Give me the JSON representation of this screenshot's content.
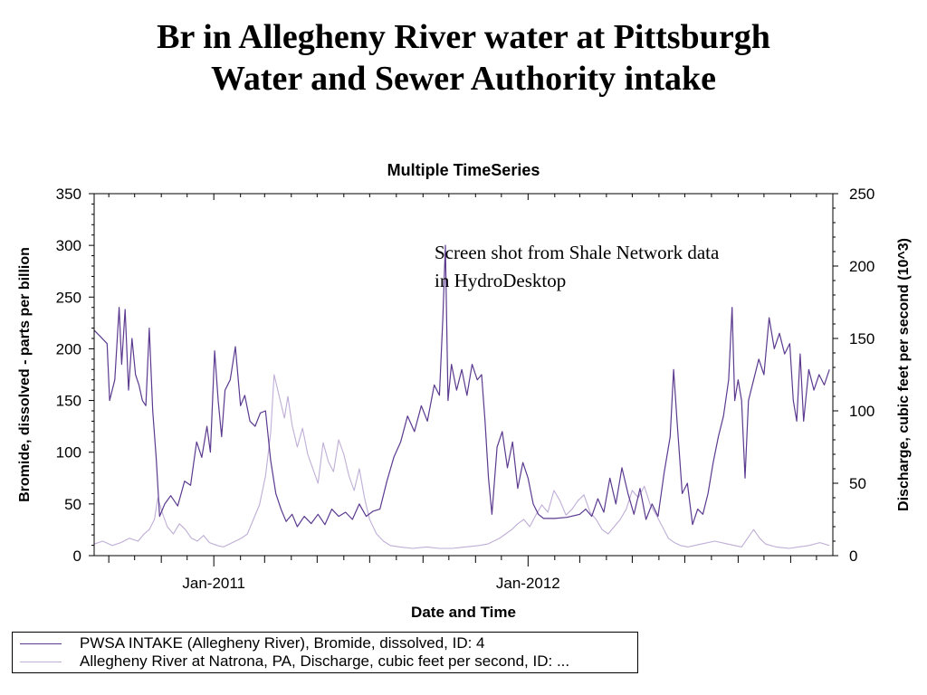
{
  "slide": {
    "title_line1": "Br in Allegheny River water at Pittsburgh",
    "title_line2": "Water and Sewer Authority intake"
  },
  "annotation": {
    "line1": "Screen shot from Shale Network data",
    "line2": "in HydroDesktop"
  },
  "chart_data": {
    "type": "line",
    "title": "Multiple TimeSeries",
    "xlabel": "Date and Time",
    "ylabel": "Bromide, dissolved - parts per billion",
    "y2label": "Discharge, cubic feet per second (10^3)",
    "xlim": [
      "2010-08-15",
      "2012-12-20"
    ],
    "ylim": [
      0,
      350
    ],
    "y2lim": [
      0,
      250
    ],
    "x_tick_labels": [
      "Jan-2011",
      "Jan-2012"
    ],
    "y_ticks": [
      0,
      50,
      100,
      150,
      200,
      250,
      300,
      350
    ],
    "y2_ticks": [
      0,
      50,
      100,
      150,
      200,
      250
    ],
    "grid": false,
    "legend_position": "bottom",
    "series": [
      {
        "name": "PWSA INTAKE (Allegheny River), Bromide, dissolved, ID: 4",
        "axis": "left",
        "color": "#5b3a8f",
        "points": [
          [
            "2010-08-15",
            218
          ],
          [
            "2010-08-22",
            212
          ],
          [
            "2010-08-30",
            205
          ],
          [
            "2010-09-02",
            150
          ],
          [
            "2010-09-08",
            170
          ],
          [
            "2010-09-13",
            240
          ],
          [
            "2010-09-16",
            185
          ],
          [
            "2010-09-20",
            238
          ],
          [
            "2010-09-24",
            160
          ],
          [
            "2010-09-28",
            210
          ],
          [
            "2010-10-02",
            175
          ],
          [
            "2010-10-06",
            165
          ],
          [
            "2010-10-10",
            150
          ],
          [
            "2010-10-14",
            145
          ],
          [
            "2010-10-18",
            220
          ],
          [
            "2010-10-22",
            140
          ],
          [
            "2010-10-26",
            95
          ],
          [
            "2010-10-30",
            38
          ],
          [
            "2010-11-05",
            50
          ],
          [
            "2010-11-12",
            58
          ],
          [
            "2010-11-20",
            48
          ],
          [
            "2010-11-28",
            72
          ],
          [
            "2010-12-05",
            68
          ],
          [
            "2010-12-12",
            110
          ],
          [
            "2010-12-18",
            95
          ],
          [
            "2010-12-24",
            125
          ],
          [
            "2010-12-28",
            100
          ],
          [
            "2011-01-02",
            198
          ],
          [
            "2011-01-06",
            150
          ],
          [
            "2011-01-10",
            115
          ],
          [
            "2011-01-14",
            160
          ],
          [
            "2011-01-20",
            170
          ],
          [
            "2011-01-26",
            202
          ],
          [
            "2011-02-01",
            145
          ],
          [
            "2011-02-06",
            155
          ],
          [
            "2011-02-12",
            130
          ],
          [
            "2011-02-18",
            125
          ],
          [
            "2011-02-24",
            138
          ],
          [
            "2011-03-02",
            140
          ],
          [
            "2011-03-08",
            92
          ],
          [
            "2011-03-14",
            60
          ],
          [
            "2011-03-20",
            45
          ],
          [
            "2011-03-26",
            33
          ],
          [
            "2011-04-02",
            40
          ],
          [
            "2011-04-08",
            28
          ],
          [
            "2011-04-16",
            38
          ],
          [
            "2011-04-24",
            31
          ],
          [
            "2011-05-02",
            40
          ],
          [
            "2011-05-10",
            30
          ],
          [
            "2011-05-18",
            45
          ],
          [
            "2011-05-26",
            38
          ],
          [
            "2011-06-03",
            42
          ],
          [
            "2011-06-11",
            35
          ],
          [
            "2011-06-19",
            50
          ],
          [
            "2011-06-27",
            38
          ],
          [
            "2011-07-05",
            43
          ],
          [
            "2011-07-13",
            45
          ],
          [
            "2011-07-21",
            72
          ],
          [
            "2011-07-29",
            95
          ],
          [
            "2011-08-06",
            110
          ],
          [
            "2011-08-14",
            135
          ],
          [
            "2011-08-22",
            120
          ],
          [
            "2011-08-30",
            145
          ],
          [
            "2011-09-06",
            130
          ],
          [
            "2011-09-14",
            165
          ],
          [
            "2011-09-20",
            155
          ],
          [
            "2011-09-24",
            230
          ],
          [
            "2011-09-27",
            300
          ],
          [
            "2011-09-30",
            150
          ],
          [
            "2011-10-04",
            185
          ],
          [
            "2011-10-10",
            160
          ],
          [
            "2011-10-16",
            180
          ],
          [
            "2011-10-22",
            155
          ],
          [
            "2011-10-28",
            185
          ],
          [
            "2011-11-03",
            170
          ],
          [
            "2011-11-08",
            175
          ],
          [
            "2011-11-12",
            130
          ],
          [
            "2011-11-16",
            75
          ],
          [
            "2011-11-20",
            40
          ],
          [
            "2011-11-26",
            105
          ],
          [
            "2011-12-02",
            120
          ],
          [
            "2011-12-08",
            85
          ],
          [
            "2011-12-14",
            110
          ],
          [
            "2011-12-20",
            65
          ],
          [
            "2011-12-26",
            90
          ],
          [
            "2012-01-01",
            75
          ],
          [
            "2012-01-07",
            50
          ],
          [
            "2012-01-13",
            40
          ],
          [
            "2012-01-19",
            36
          ],
          [
            "2012-02-01",
            36
          ],
          [
            "2012-02-15",
            37
          ],
          [
            "2012-03-01",
            40
          ],
          [
            "2012-03-08",
            45
          ],
          [
            "2012-03-15",
            38
          ],
          [
            "2012-03-22",
            55
          ],
          [
            "2012-03-29",
            42
          ],
          [
            "2012-04-05",
            75
          ],
          [
            "2012-04-12",
            50
          ],
          [
            "2012-04-19",
            85
          ],
          [
            "2012-04-26",
            60
          ],
          [
            "2012-05-03",
            40
          ],
          [
            "2012-05-10",
            65
          ],
          [
            "2012-05-17",
            35
          ],
          [
            "2012-05-24",
            50
          ],
          [
            "2012-05-31",
            38
          ],
          [
            "2012-06-07",
            80
          ],
          [
            "2012-06-14",
            115
          ],
          [
            "2012-06-18",
            180
          ],
          [
            "2012-06-22",
            130
          ],
          [
            "2012-06-28",
            60
          ],
          [
            "2012-07-04",
            70
          ],
          [
            "2012-07-10",
            30
          ],
          [
            "2012-07-16",
            45
          ],
          [
            "2012-07-22",
            40
          ],
          [
            "2012-07-28",
            60
          ],
          [
            "2012-08-03",
            90
          ],
          [
            "2012-08-09",
            115
          ],
          [
            "2012-08-15",
            135
          ],
          [
            "2012-08-21",
            170
          ],
          [
            "2012-08-25",
            240
          ],
          [
            "2012-08-28",
            150
          ],
          [
            "2012-09-01",
            170
          ],
          [
            "2012-09-05",
            150
          ],
          [
            "2012-09-09",
            75
          ],
          [
            "2012-09-13",
            150
          ],
          [
            "2012-09-19",
            170
          ],
          [
            "2012-09-25",
            190
          ],
          [
            "2012-10-01",
            175
          ],
          [
            "2012-10-07",
            230
          ],
          [
            "2012-10-13",
            200
          ],
          [
            "2012-10-19",
            215
          ],
          [
            "2012-10-25",
            195
          ],
          [
            "2012-10-31",
            205
          ],
          [
            "2012-11-04",
            150
          ],
          [
            "2012-11-08",
            130
          ],
          [
            "2012-11-12",
            195
          ],
          [
            "2012-11-16",
            130
          ],
          [
            "2012-11-22",
            180
          ],
          [
            "2012-11-28",
            160
          ],
          [
            "2012-12-04",
            175
          ],
          [
            "2012-12-10",
            165
          ],
          [
            "2012-12-16",
            180
          ]
        ]
      },
      {
        "name": "Allegheny River at Natrona, PA, Discharge, cubic feet per second, ID: ...",
        "axis": "right",
        "color": "#bfaed6",
        "points": [
          [
            "2010-08-15",
            8
          ],
          [
            "2010-08-25",
            10
          ],
          [
            "2010-09-05",
            7
          ],
          [
            "2010-09-15",
            9
          ],
          [
            "2010-09-25",
            12
          ],
          [
            "2010-10-05",
            10
          ],
          [
            "2010-10-12",
            15
          ],
          [
            "2010-10-18",
            18
          ],
          [
            "2010-10-24",
            25
          ],
          [
            "2010-10-28",
            40
          ],
          [
            "2010-11-02",
            30
          ],
          [
            "2010-11-08",
            20
          ],
          [
            "2010-11-15",
            15
          ],
          [
            "2010-11-22",
            22
          ],
          [
            "2010-11-29",
            18
          ],
          [
            "2010-12-06",
            12
          ],
          [
            "2010-12-13",
            10
          ],
          [
            "2010-12-20",
            14
          ],
          [
            "2010-12-27",
            9
          ],
          [
            "2011-01-05",
            7
          ],
          [
            "2011-01-12",
            6
          ],
          [
            "2011-01-19",
            8
          ],
          [
            "2011-01-26",
            10
          ],
          [
            "2011-02-02",
            12
          ],
          [
            "2011-02-09",
            15
          ],
          [
            "2011-02-16",
            25
          ],
          [
            "2011-02-23",
            35
          ],
          [
            "2011-03-02",
            55
          ],
          [
            "2011-03-08",
            85
          ],
          [
            "2011-03-12",
            125
          ],
          [
            "2011-03-16",
            115
          ],
          [
            "2011-03-20",
            105
          ],
          [
            "2011-03-24",
            95
          ],
          [
            "2011-03-28",
            110
          ],
          [
            "2011-04-02",
            90
          ],
          [
            "2011-04-08",
            75
          ],
          [
            "2011-04-14",
            88
          ],
          [
            "2011-04-20",
            70
          ],
          [
            "2011-04-26",
            60
          ],
          [
            "2011-05-02",
            50
          ],
          [
            "2011-05-08",
            78
          ],
          [
            "2011-05-14",
            65
          ],
          [
            "2011-05-20",
            58
          ],
          [
            "2011-05-26",
            80
          ],
          [
            "2011-06-01",
            70
          ],
          [
            "2011-06-07",
            55
          ],
          [
            "2011-06-13",
            45
          ],
          [
            "2011-06-19",
            60
          ],
          [
            "2011-06-25",
            40
          ],
          [
            "2011-07-01",
            25
          ],
          [
            "2011-07-09",
            15
          ],
          [
            "2011-07-17",
            10
          ],
          [
            "2011-07-25",
            7
          ],
          [
            "2011-08-05",
            6
          ],
          [
            "2011-08-20",
            5
          ],
          [
            "2011-09-05",
            6
          ],
          [
            "2011-09-20",
            5
          ],
          [
            "2011-10-05",
            5
          ],
          [
            "2011-10-20",
            6
          ],
          [
            "2011-11-05",
            7
          ],
          [
            "2011-11-15",
            8
          ],
          [
            "2011-11-22",
            10
          ],
          [
            "2011-11-29",
            12
          ],
          [
            "2011-12-06",
            15
          ],
          [
            "2011-12-13",
            18
          ],
          [
            "2011-12-20",
            22
          ],
          [
            "2011-12-27",
            25
          ],
          [
            "2012-01-03",
            20
          ],
          [
            "2012-01-10",
            28
          ],
          [
            "2012-01-17",
            35
          ],
          [
            "2012-01-24",
            30
          ],
          [
            "2012-01-31",
            45
          ],
          [
            "2012-02-07",
            38
          ],
          [
            "2012-02-14",
            28
          ],
          [
            "2012-02-21",
            32
          ],
          [
            "2012-02-28",
            38
          ],
          [
            "2012-03-06",
            42
          ],
          [
            "2012-03-13",
            30
          ],
          [
            "2012-03-20",
            25
          ],
          [
            "2012-03-27",
            18
          ],
          [
            "2012-04-03",
            15
          ],
          [
            "2012-04-10",
            20
          ],
          [
            "2012-04-17",
            25
          ],
          [
            "2012-04-24",
            32
          ],
          [
            "2012-05-01",
            45
          ],
          [
            "2012-05-08",
            40
          ],
          [
            "2012-05-15",
            48
          ],
          [
            "2012-05-22",
            35
          ],
          [
            "2012-05-29",
            28
          ],
          [
            "2012-06-05",
            20
          ],
          [
            "2012-06-12",
            12
          ],
          [
            "2012-06-19",
            9
          ],
          [
            "2012-06-26",
            7
          ],
          [
            "2012-07-05",
            6
          ],
          [
            "2012-07-20",
            8
          ],
          [
            "2012-08-05",
            10
          ],
          [
            "2012-08-20",
            8
          ],
          [
            "2012-09-05",
            6
          ],
          [
            "2012-09-12",
            12
          ],
          [
            "2012-09-19",
            18
          ],
          [
            "2012-09-26",
            12
          ],
          [
            "2012-10-03",
            8
          ],
          [
            "2012-10-15",
            6
          ],
          [
            "2012-10-30",
            5
          ],
          [
            "2012-11-10",
            6
          ],
          [
            "2012-11-22",
            7
          ],
          [
            "2012-12-05",
            9
          ],
          [
            "2012-12-16",
            7
          ]
        ]
      }
    ]
  }
}
